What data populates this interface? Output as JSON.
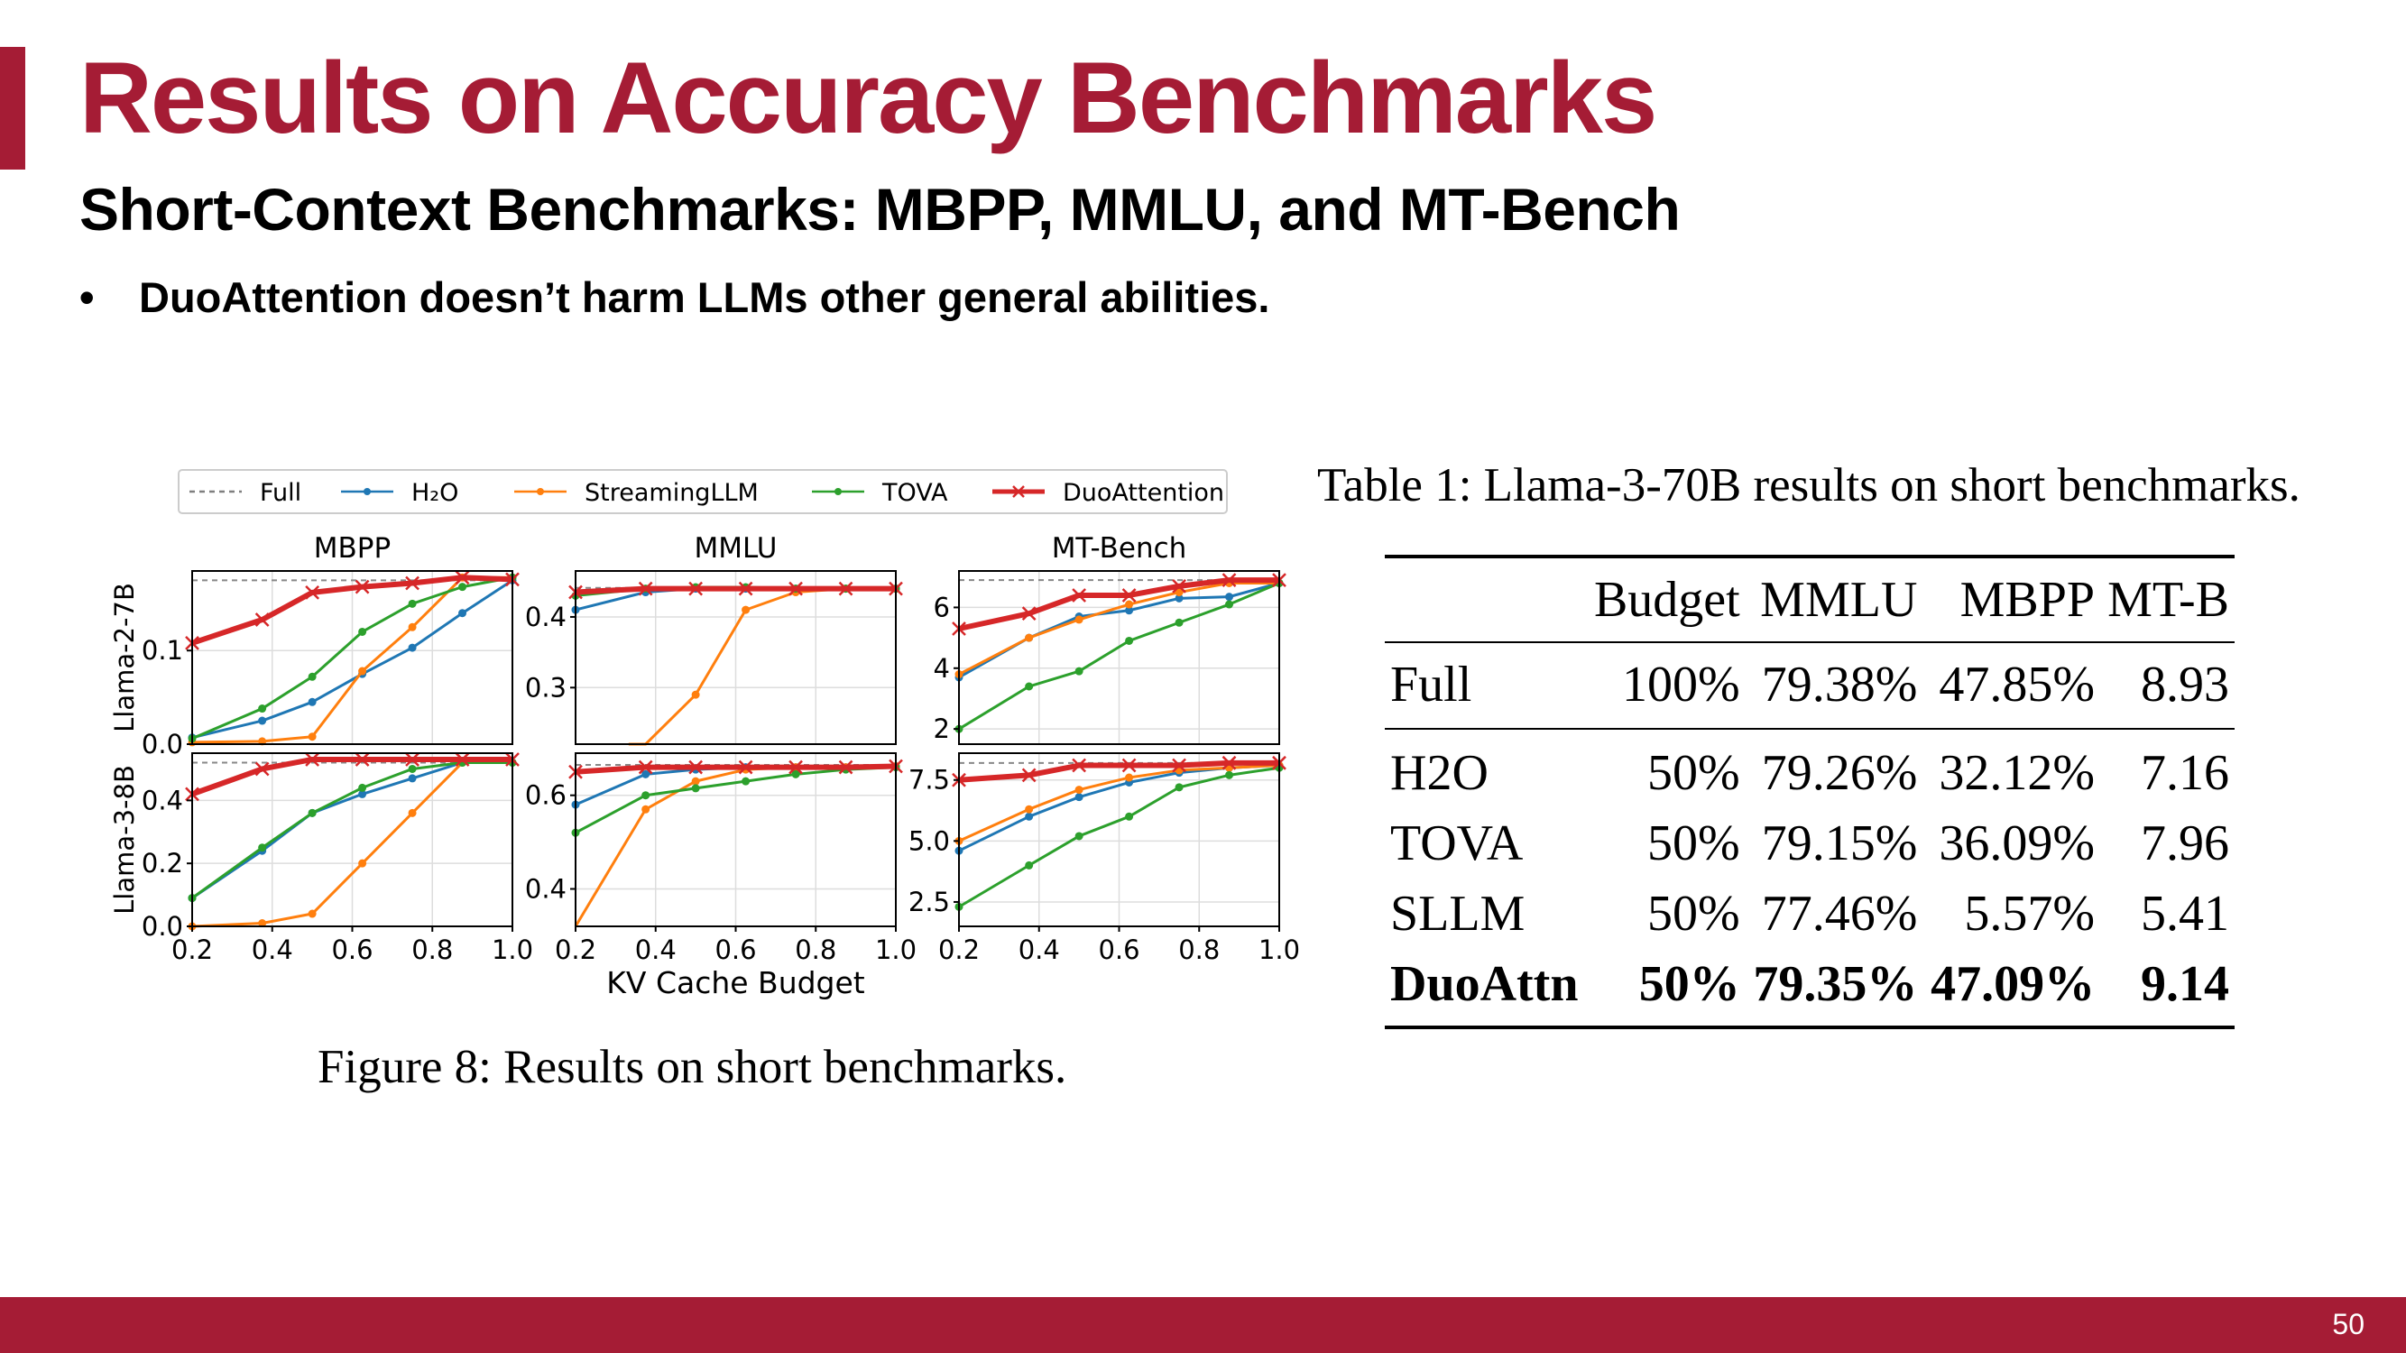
{
  "slide": {
    "title": "Results on Accuracy Benchmarks",
    "subtitle": "Short-Context Benchmarks: MBPP, MMLU, and MT-Bench",
    "bullet": "DuoAttention doesn’t harm LLMs other general abilities.",
    "page_number": "50",
    "accent_color": "#a51c35"
  },
  "figure": {
    "caption": "Figure 8: Results on short benchmarks."
  },
  "table": {
    "caption": "Table 1: Llama-3-70B results on short benchmarks.",
    "headers": [
      "",
      "Budget",
      "MMLU",
      "MBPP",
      "MT-B"
    ],
    "full_row": [
      "Full",
      "100%",
      "79.38%",
      "47.85%",
      "8.93"
    ],
    "rows": [
      [
        "H2O",
        "50%",
        "79.26%",
        "32.12%",
        "7.16"
      ],
      [
        "TOVA",
        "50%",
        "79.15%",
        "36.09%",
        "7.96"
      ],
      [
        "SLLM",
        "50%",
        "77.46%",
        "5.57%",
        "5.41"
      ],
      [
        "DuoAttn",
        "50%",
        "79.35%",
        "47.09%",
        "9.14"
      ]
    ]
  },
  "chart_data": {
    "type": "line",
    "xlabel": "KV Cache Budget",
    "x": [
      0.2,
      0.375,
      0.5,
      0.625,
      0.75,
      0.875,
      1.0
    ],
    "xticks": [
      "0.2",
      "0.4",
      "0.6",
      "0.8",
      "1.0"
    ],
    "columns": [
      "MBPP",
      "MMLU",
      "MT-Bench"
    ],
    "rows": [
      "Llama-2-7B",
      "Llama-3-8B"
    ],
    "grid": true,
    "legend_position": "top",
    "legend": [
      {
        "name": "Full",
        "color": "#7f7f7f",
        "style": "dashed"
      },
      {
        "name": "H₂O",
        "color": "#1f77b4",
        "style": "dot"
      },
      {
        "name": "StreamingLLM",
        "color": "#ff7f0e",
        "style": "dot"
      },
      {
        "name": "TOVA",
        "color": "#2ca02c",
        "style": "dot"
      },
      {
        "name": "DuoAttention",
        "color": "#d62728",
        "style": "cross"
      }
    ],
    "panels": [
      {
        "row": 0,
        "col": 0,
        "ylim": [
          0,
          0.185
        ],
        "yticks": [
          0.0,
          0.1
        ],
        "yticklabels": [
          "0.0",
          "0.1"
        ],
        "full": 0.175,
        "series": {
          "H₂O": [
            0.007,
            0.025,
            0.045,
            0.075,
            0.103,
            0.14,
            0.175
          ],
          "StreamingLLM": [
            0.002,
            0.003,
            0.008,
            0.078,
            0.125,
            0.178,
            0.178
          ],
          "TOVA": [
            0.006,
            0.038,
            0.072,
            0.12,
            0.15,
            0.168,
            0.178
          ],
          "DuoAttention": [
            0.108,
            0.133,
            0.162,
            0.168,
            0.172,
            0.178,
            0.176
          ]
        }
      },
      {
        "row": 0,
        "col": 1,
        "ylim": [
          0.22,
          0.465
        ],
        "yticks": [
          0.3,
          0.4
        ],
        "yticklabels": [
          "0.3",
          "0.4"
        ],
        "full": 0.441,
        "series": {
          "H₂O": [
            0.41,
            0.435,
            0.44,
            0.44,
            0.44,
            0.44,
            0.44
          ],
          "StreamingLLM": [
            null,
            0.18,
            0.29,
            0.41,
            0.435,
            0.44,
            0.44
          ],
          "TOVA": [
            0.43,
            0.44,
            0.442,
            0.442,
            0.44,
            0.44,
            0.44
          ],
          "DuoAttention": [
            0.435,
            0.44,
            0.44,
            0.44,
            0.44,
            0.44,
            0.44
          ]
        }
      },
      {
        "row": 0,
        "col": 2,
        "ylim": [
          1.5,
          7.2
        ],
        "yticks": [
          2,
          4,
          6
        ],
        "yticklabels": [
          "2",
          "4",
          "6"
        ],
        "full": 6.9,
        "series": {
          "H₂O": [
            3.7,
            5.0,
            5.7,
            5.9,
            6.3,
            6.35,
            6.8
          ],
          "StreamingLLM": [
            3.8,
            5.0,
            5.6,
            6.1,
            6.5,
            6.8,
            6.8
          ],
          "TOVA": [
            2.0,
            3.4,
            3.9,
            4.9,
            5.5,
            6.1,
            6.8
          ],
          "DuoAttention": [
            5.3,
            5.8,
            6.4,
            6.4,
            6.7,
            6.9,
            6.9
          ]
        }
      },
      {
        "row": 1,
        "col": 0,
        "ylim": [
          0,
          0.55
        ],
        "yticks": [
          0.0,
          0.2,
          0.4
        ],
        "yticklabels": [
          "0.0",
          "0.2",
          "0.4"
        ],
        "full": 0.52,
        "series": {
          "H₂O": [
            0.09,
            0.24,
            0.36,
            0.42,
            0.47,
            0.52,
            0.52
          ],
          "StreamingLLM": [
            0.0,
            0.01,
            0.04,
            0.2,
            0.36,
            0.52,
            0.52
          ],
          "TOVA": [
            0.09,
            0.25,
            0.36,
            0.44,
            0.5,
            0.52,
            0.52
          ],
          "DuoAttention": [
            0.42,
            0.5,
            0.53,
            0.53,
            0.53,
            0.53,
            0.53
          ]
        }
      },
      {
        "row": 1,
        "col": 1,
        "ylim": [
          0.32,
          0.69
        ],
        "yticks": [
          0.4,
          0.6
        ],
        "yticklabels": [
          "0.4",
          "0.6"
        ],
        "full": 0.665,
        "series": {
          "H₂O": [
            0.58,
            0.645,
            0.655,
            0.66,
            0.66,
            0.66,
            0.662
          ],
          "StreamingLLM": [
            0.31,
            0.57,
            0.63,
            0.655,
            0.66,
            0.66,
            0.662
          ],
          "TOVA": [
            0.52,
            0.6,
            0.615,
            0.63,
            0.645,
            0.655,
            0.66
          ],
          "DuoAttention": [
            0.65,
            0.66,
            0.66,
            0.66,
            0.66,
            0.66,
            0.662
          ]
        }
      },
      {
        "row": 1,
        "col": 2,
        "ylim": [
          1.5,
          8.6
        ],
        "yticks": [
          2.5,
          5.0,
          7.5
        ],
        "yticklabels": [
          "2.5",
          "5.0",
          "7.5"
        ],
        "full": 8.2,
        "series": {
          "H₂O": [
            4.6,
            6.0,
            6.8,
            7.4,
            7.8,
            8.0,
            8.1
          ],
          "StreamingLLM": [
            5.0,
            6.3,
            7.1,
            7.6,
            7.9,
            8.0,
            8.1
          ],
          "TOVA": [
            2.3,
            4.0,
            5.2,
            6.0,
            7.2,
            7.7,
            8.0
          ],
          "DuoAttention": [
            7.5,
            7.7,
            8.1,
            8.1,
            8.1,
            8.2,
            8.2
          ]
        }
      }
    ]
  }
}
